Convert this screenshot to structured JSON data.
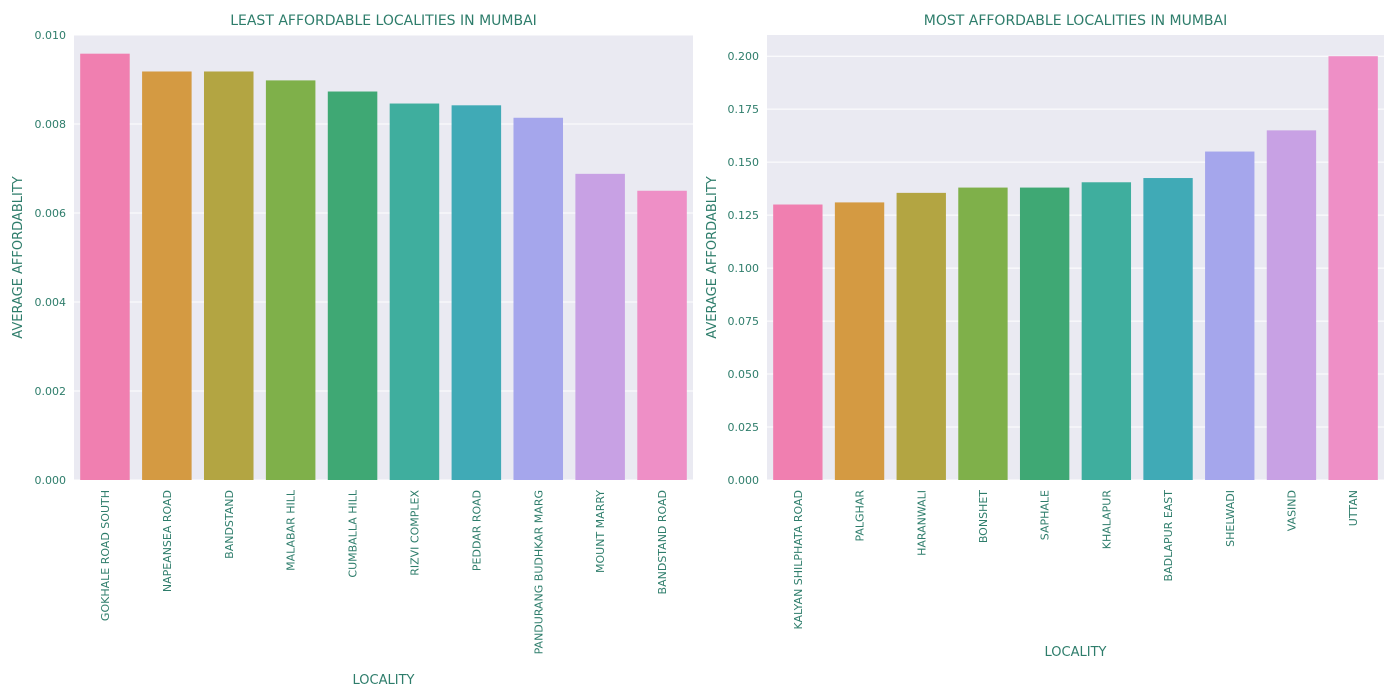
{
  "chart_data": [
    {
      "type": "bar",
      "title": "LEAST AFFORDABLE LOCALITIES IN MUMBAI",
      "xlabel": "LOCALITY",
      "ylabel": "AVERAGE AFFORDABLITY",
      "ylim": [
        0,
        0.01
      ],
      "yticks": [
        "0.000",
        "0.002",
        "0.004",
        "0.006",
        "0.008",
        "0.010"
      ],
      "ytick_values": [
        0,
        0.002,
        0.004,
        0.006,
        0.008,
        0.01
      ],
      "grid": true,
      "categories": [
        "GOKHALE ROAD SOUTH",
        "NAPEANSEA ROAD",
        "BANDSTAND",
        "MALABAR HILL",
        "CUMBALLA HILL",
        "RIZVI COMPLEX",
        "PEDDAR ROAD",
        "PANDURANG BUDHKAR MARG",
        "MOUNT MARRY",
        "BANDSTAND ROAD"
      ],
      "values": [
        0.00958,
        0.00918,
        0.00918,
        0.00898,
        0.00873,
        0.00846,
        0.00842,
        0.00814,
        0.00688,
        0.0065
      ],
      "colors": [
        "#f07fb0",
        "#d49a42",
        "#b3a542",
        "#7fb04a",
        "#3fa874",
        "#3fae9e",
        "#40aab6",
        "#a5a6ec",
        "#c8a1e4",
        "#ee8fc6"
      ]
    },
    {
      "type": "bar",
      "title": "MOST AFFORDABLE LOCALITIES IN MUMBAI",
      "xlabel": "LOCALITY",
      "ylabel": "AVERAGE AFFORDABLITY",
      "ylim": [
        0,
        0.21
      ],
      "yticks": [
        "0.000",
        "0.025",
        "0.050",
        "0.075",
        "0.100",
        "0.125",
        "0.150",
        "0.175",
        "0.200"
      ],
      "ytick_values": [
        0,
        0.025,
        0.05,
        0.075,
        0.1,
        0.125,
        0.15,
        0.175,
        0.2
      ],
      "grid": true,
      "categories": [
        "KALYAN SHILPHATA ROAD",
        "PALGHAR",
        "HARANWALI",
        "BONSHET",
        "SAPHALE",
        "KHALAPUR",
        "BADLAPUR EAST",
        "SHELWADI",
        "VASIND",
        "UTTAN"
      ],
      "values": [
        0.13,
        0.131,
        0.1355,
        0.138,
        0.138,
        0.1405,
        0.1425,
        0.155,
        0.165,
        0.2
      ],
      "colors": [
        "#f07fb0",
        "#d49a42",
        "#b3a542",
        "#7fb04a",
        "#3fa874",
        "#3fae9e",
        "#40aab6",
        "#a5a6ec",
        "#c8a1e4",
        "#ee8fc6"
      ]
    }
  ]
}
